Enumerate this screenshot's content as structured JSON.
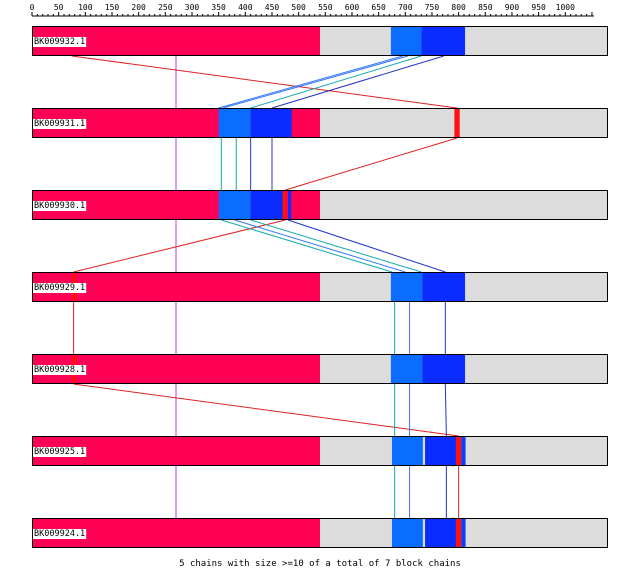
{
  "axis": {
    "max": 1050,
    "tick_step": 10,
    "major_step": 50,
    "labels": [
      "0",
      "50",
      "100",
      "150",
      "200",
      "250",
      "300",
      "350",
      "400",
      "450",
      "500",
      "550",
      "600",
      "650",
      "700",
      "750",
      "800",
      "850",
      "900",
      "950",
      "1000"
    ]
  },
  "colors": {
    "background": "#ffffff",
    "track": "#dcdcdc",
    "track_border": "#000000",
    "chain_1": "#ff0055",
    "chain_2": "#0a6dff",
    "chain_3": "#0a2cff",
    "chain_4": "#ff1111",
    "chain_5": "#0b3dff",
    "link_pink": "#cc33cc",
    "link_red": "#dd2222",
    "link_teal": "#11aaaa",
    "link_blue": "#2233cc",
    "link_lightblue": "#3377ff"
  },
  "sequences": [
    {
      "id": "BK009932.1",
      "length": 1050,
      "blocks": [
        {
          "start": 0,
          "end": 540,
          "color": "chain_1"
        },
        {
          "start": 673,
          "end": 730,
          "color": "chain_2"
        },
        {
          "start": 730,
          "end": 812,
          "color": "chain_3"
        }
      ]
    },
    {
      "id": "BK009931.1",
      "length": 1050,
      "blocks": [
        {
          "start": 0,
          "end": 540,
          "color": "chain_1"
        },
        {
          "start": 350,
          "end": 410,
          "color": "chain_2"
        },
        {
          "start": 410,
          "end": 487,
          "color": "chain_3"
        },
        {
          "start": 792,
          "end": 802,
          "color": "chain_4"
        }
      ]
    },
    {
      "id": "BK009930.1",
      "length": 1050,
      "blocks": [
        {
          "start": 0,
          "end": 540,
          "color": "chain_1"
        },
        {
          "start": 350,
          "end": 410,
          "color": "chain_2"
        },
        {
          "start": 410,
          "end": 470,
          "color": "chain_3"
        },
        {
          "start": 470,
          "end": 478,
          "color": "chain_4"
        },
        {
          "start": 480,
          "end": 486,
          "color": "chain_3"
        }
      ]
    },
    {
      "id": "BK009929.1",
      "length": 1050,
      "blocks": [
        {
          "start": 0,
          "end": 540,
          "color": "chain_1"
        },
        {
          "start": 673,
          "end": 732,
          "color": "chain_2"
        },
        {
          "start": 732,
          "end": 812,
          "color": "chain_3"
        },
        {
          "start": 75,
          "end": 82,
          "color": "chain_4"
        }
      ]
    },
    {
      "id": "BK009928.1",
      "length": 1050,
      "blocks": [
        {
          "start": 0,
          "end": 540,
          "color": "chain_1"
        },
        {
          "start": 673,
          "end": 732,
          "color": "chain_2"
        },
        {
          "start": 732,
          "end": 812,
          "color": "chain_3"
        },
        {
          "start": 75,
          "end": 82,
          "color": "chain_4"
        }
      ]
    },
    {
      "id": "BK009925.1",
      "length": 1050,
      "blocks": [
        {
          "start": 0,
          "end": 540,
          "color": "chain_1"
        },
        {
          "start": 675,
          "end": 733,
          "color": "chain_2"
        },
        {
          "start": 737,
          "end": 795,
          "color": "chain_3"
        },
        {
          "start": 795,
          "end": 805,
          "color": "chain_4"
        },
        {
          "start": 805,
          "end": 813,
          "color": "chain_5"
        }
      ]
    },
    {
      "id": "BK009924.1",
      "length": 1050,
      "blocks": [
        {
          "start": 0,
          "end": 540,
          "color": "chain_1"
        },
        {
          "start": 675,
          "end": 733,
          "color": "chain_2"
        },
        {
          "start": 737,
          "end": 795,
          "color": "chain_3"
        },
        {
          "start": 795,
          "end": 805,
          "color": "chain_4"
        },
        {
          "start": 805,
          "end": 813,
          "color": "chain_5"
        }
      ]
    }
  ],
  "links": [
    {
      "from": 0,
      "to": 1,
      "a": 270,
      "b": 270,
      "color": "link_pink"
    },
    {
      "from": 0,
      "to": 1,
      "a": 75,
      "b": 797,
      "color": "link_red"
    },
    {
      "from": 0,
      "to": 1,
      "a": 695,
      "b": 350,
      "color": "link_lightblue"
    },
    {
      "from": 0,
      "to": 1,
      "a": 705,
      "b": 358,
      "color": "link_lightblue"
    },
    {
      "from": 0,
      "to": 1,
      "a": 730,
      "b": 410,
      "color": "link_teal"
    },
    {
      "from": 0,
      "to": 1,
      "a": 772,
      "b": 450,
      "color": "link_blue"
    },
    {
      "from": 1,
      "to": 2,
      "a": 270,
      "b": 270,
      "color": "link_pink"
    },
    {
      "from": 1,
      "to": 2,
      "a": 797,
      "b": 475,
      "color": "link_red"
    },
    {
      "from": 1,
      "to": 2,
      "a": 355,
      "b": 355,
      "color": "link_teal"
    },
    {
      "from": 1,
      "to": 2,
      "a": 383,
      "b": 383,
      "color": "link_teal"
    },
    {
      "from": 1,
      "to": 2,
      "a": 410,
      "b": 410,
      "color": "link_blue"
    },
    {
      "from": 1,
      "to": 2,
      "a": 450,
      "b": 450,
      "color": "link_blue"
    },
    {
      "from": 2,
      "to": 3,
      "a": 270,
      "b": 270,
      "color": "link_pink"
    },
    {
      "from": 2,
      "to": 3,
      "a": 475,
      "b": 78,
      "color": "link_red"
    },
    {
      "from": 2,
      "to": 3,
      "a": 355,
      "b": 675,
      "color": "link_teal"
    },
    {
      "from": 2,
      "to": 3,
      "a": 380,
      "b": 700,
      "color": "link_lightblue"
    },
    {
      "from": 2,
      "to": 3,
      "a": 410,
      "b": 730,
      "color": "link_teal"
    },
    {
      "from": 2,
      "to": 3,
      "a": 480,
      "b": 775,
      "color": "link_blue"
    },
    {
      "from": 3,
      "to": 4,
      "a": 270,
      "b": 270,
      "color": "link_pink"
    },
    {
      "from": 3,
      "to": 4,
      "a": 78,
      "b": 78,
      "color": "link_red"
    },
    {
      "from": 3,
      "to": 4,
      "a": 680,
      "b": 680,
      "color": "link_teal"
    },
    {
      "from": 3,
      "to": 4,
      "a": 708,
      "b": 708,
      "color": "link_lightblue"
    },
    {
      "from": 3,
      "to": 4,
      "a": 775,
      "b": 775,
      "color": "link_blue"
    },
    {
      "from": 4,
      "to": 5,
      "a": 270,
      "b": 270,
      "color": "link_pink"
    },
    {
      "from": 4,
      "to": 5,
      "a": 78,
      "b": 800,
      "color": "link_red"
    },
    {
      "from": 4,
      "to": 5,
      "a": 680,
      "b": 680,
      "color": "link_teal"
    },
    {
      "from": 4,
      "to": 5,
      "a": 708,
      "b": 708,
      "color": "link_lightblue"
    },
    {
      "from": 4,
      "to": 5,
      "a": 775,
      "b": 777,
      "color": "link_blue"
    },
    {
      "from": 5,
      "to": 6,
      "a": 270,
      "b": 270,
      "color": "link_pink"
    },
    {
      "from": 5,
      "to": 6,
      "a": 800,
      "b": 800,
      "color": "link_red"
    },
    {
      "from": 5,
      "to": 6,
      "a": 680,
      "b": 680,
      "color": "link_teal"
    },
    {
      "from": 5,
      "to": 6,
      "a": 708,
      "b": 708,
      "color": "link_lightblue"
    },
    {
      "from": 5,
      "to": 6,
      "a": 777,
      "b": 777,
      "color": "link_blue"
    }
  ],
  "footer": {
    "caption": "5 chains with size >=10 of a total of 7 block chains"
  }
}
